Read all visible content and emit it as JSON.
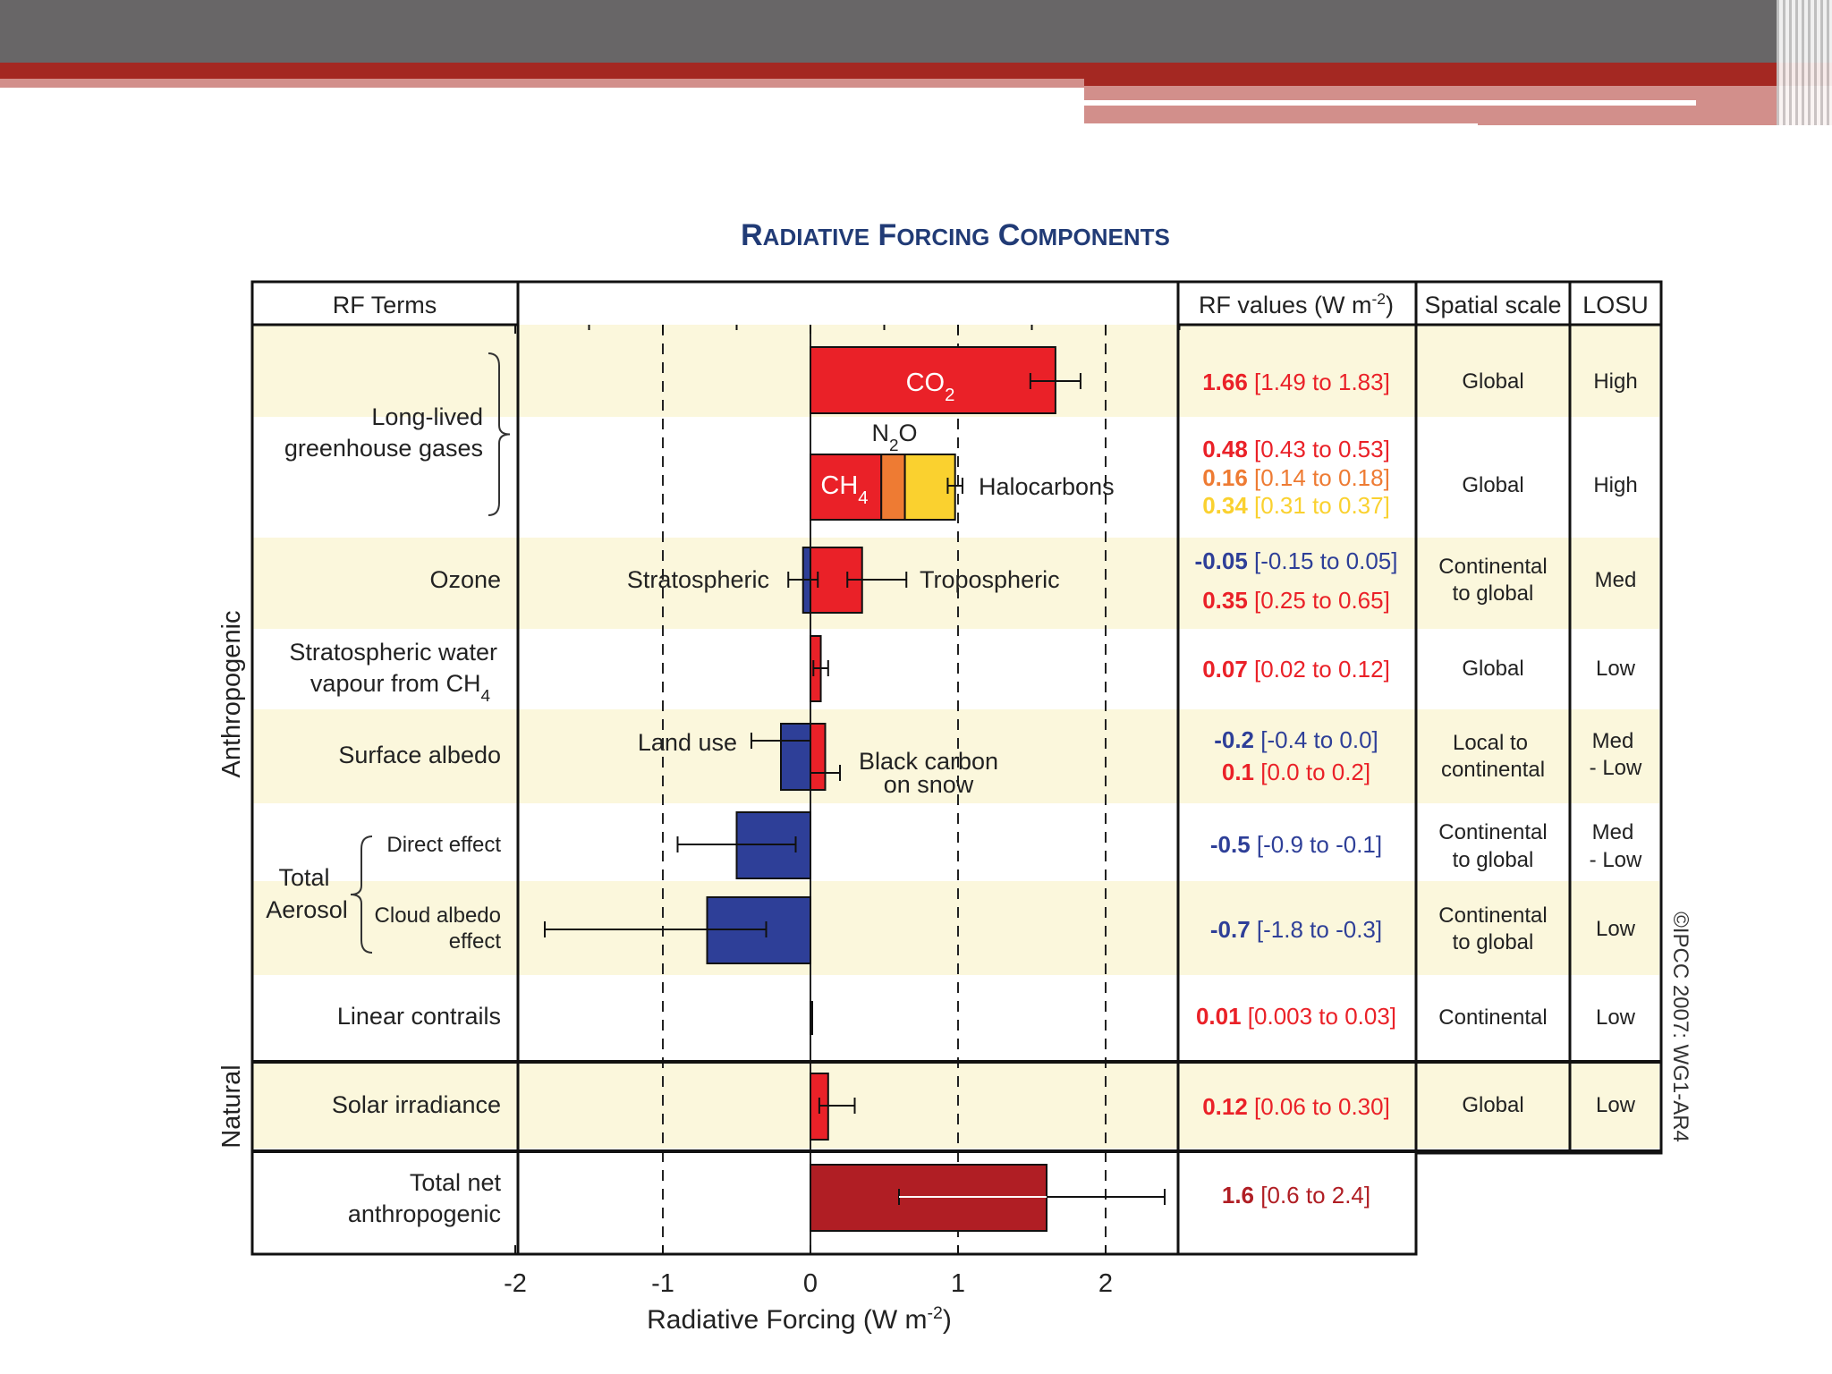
{
  "chart_data": {
    "type": "bar",
    "orientation": "horizontal",
    "title": "Radiative Forcing Components",
    "xlabel": "Radiative Forcing  (W m",
    "xlabel_sup": "-2",
    "xlabel_close": ")",
    "xlim": [
      -2,
      2.5
    ],
    "x_ticks": [
      -2,
      -1,
      0,
      1,
      2
    ],
    "dashed_gridlines_at": [
      -1,
      1,
      2
    ],
    "table_headers": {
      "rf_terms": "RF Terms",
      "rf_values": "RF values (W m",
      "rf_values_sup": "-2",
      "rf_values_close": ")",
      "spatial_scale": "Spatial scale",
      "losu": "LOSU"
    },
    "group_labels": {
      "anthropogenic": "Anthropogenic",
      "natural": "Natural"
    },
    "colors": {
      "positive": "#ea2128",
      "negative": "#2e3f98",
      "n2o": "#ee7b33",
      "halocarbons": "#fad12f",
      "total": "#b01e24",
      "band": "#fbf7dc",
      "title": "#213b76"
    },
    "rows": [
      {
        "term": [
          "Long-lived",
          "greenhouse gases"
        ],
        "components": [
          {
            "name": "CO",
            "sub": "2",
            "value": 1.66,
            "range": [
              1.49,
              1.83
            ]
          },
          {
            "name": "N",
            "sub": "2",
            "suffix": "O",
            "value": 0.16,
            "range": [
              0.14,
              0.18
            ]
          },
          {
            "name": "CH",
            "sub": "4",
            "value": 0.48,
            "range": [
              0.43,
              0.53
            ]
          },
          {
            "name": "Halocarbons",
            "value": 0.34,
            "range": [
              0.31,
              0.37
            ]
          }
        ],
        "values_text": [
          {
            "v": "1.66",
            "r": "[1.49 to 1.83]",
            "color": "#ea2128"
          },
          {
            "v": "0.48",
            "r": "[0.43 to 0.53]",
            "color": "#ea2128"
          },
          {
            "v": "0.16",
            "r": "[0.14 to 0.18]",
            "color": "#ee7b33"
          },
          {
            "v": "0.34",
            "r": "[0.31 to 0.37]",
            "color": "#fad12f"
          }
        ],
        "spatial_scale": [
          "Global",
          "Global"
        ],
        "losu": [
          "High",
          "High"
        ]
      },
      {
        "term": [
          "Ozone"
        ],
        "components": [
          {
            "name": "Stratospheric",
            "value": -0.05,
            "range": [
              -0.15,
              0.05
            ]
          },
          {
            "name": "Tropospheric",
            "value": 0.35,
            "range": [
              0.25,
              0.65
            ]
          }
        ],
        "values_text": [
          {
            "v": "-0.05",
            "r": "[-0.15 to 0.05]",
            "color": "#2e3f98"
          },
          {
            "v": "0.35",
            "r": "[0.25 to 0.65]",
            "color": "#ea2128"
          }
        ],
        "spatial_scale": [
          "Continental",
          "to global"
        ],
        "losu": [
          "Med"
        ]
      },
      {
        "term": [
          "Stratospheric water",
          "vapour from CH"
        ],
        "term_sub": "4",
        "components": [
          {
            "value": 0.07,
            "range": [
              0.02,
              0.12
            ]
          }
        ],
        "values_text": [
          {
            "v": "0.07",
            "r": "[0.02 to 0.12]",
            "color": "#ea2128"
          }
        ],
        "spatial_scale": [
          "Global"
        ],
        "losu": [
          "Low"
        ]
      },
      {
        "term": [
          "Surface albedo"
        ],
        "components": [
          {
            "name": "Land use",
            "value": -0.2,
            "range": [
              -0.4,
              0.0
            ]
          },
          {
            "name": [
              "Black carbon",
              "on snow"
            ],
            "value": 0.1,
            "range": [
              0.0,
              0.2
            ]
          }
        ],
        "values_text": [
          {
            "v": "-0.2",
            "r": "[-0.4 to 0.0]",
            "color": "#2e3f98"
          },
          {
            "v": "0.1",
            "r": "[0.0 to 0.2]",
            "color": "#ea2128"
          }
        ],
        "spatial_scale": [
          "Local to",
          "continental"
        ],
        "losu": [
          "Med",
          "- Low"
        ]
      },
      {
        "term": [
          "Total",
          "Aerosol"
        ],
        "sub_terms": [
          [
            "Direct effect"
          ],
          [
            "Cloud albedo",
            "effect"
          ]
        ],
        "components": [
          {
            "name": "Direct effect",
            "value": -0.5,
            "range": [
              -0.9,
              -0.1
            ]
          },
          {
            "name": "Cloud albedo effect",
            "value": -0.7,
            "range": [
              -1.8,
              -0.3
            ]
          }
        ],
        "values_text": [
          {
            "v": "-0.5",
            "r": "[-0.9 to -0.1]",
            "color": "#2e3f98"
          },
          {
            "v": "-0.7",
            "r": "[-1.8 to -0.3]",
            "color": "#2e3f98"
          }
        ],
        "spatial_scale": [
          "Continental",
          "to global",
          "Continental",
          "to global"
        ],
        "losu": [
          "Med",
          "- Low",
          "Low"
        ]
      },
      {
        "term": [
          "Linear contrails"
        ],
        "components": [
          {
            "value": 0.01,
            "range": [
              0.003,
              0.03
            ]
          }
        ],
        "values_text": [
          {
            "v": "0.01",
            "r": "[0.003 to 0.03]",
            "color": "#ea2128"
          }
        ],
        "spatial_scale": [
          "Continental"
        ],
        "losu": [
          "Low"
        ]
      },
      {
        "term": [
          "Solar irradiance"
        ],
        "components": [
          {
            "value": 0.12,
            "range": [
              0.06,
              0.3
            ]
          }
        ],
        "values_text": [
          {
            "v": "0.12",
            "r": "[0.06 to 0.30]",
            "color": "#ea2128"
          }
        ],
        "spatial_scale": [
          "Global"
        ],
        "losu": [
          "Low"
        ]
      },
      {
        "term": [
          "Total net",
          "anthropogenic"
        ],
        "components": [
          {
            "value": 1.6,
            "range": [
              0.6,
              2.4
            ]
          }
        ],
        "values_text": [
          {
            "v": "1.6",
            "r": "[0.6 to 2.4]",
            "color": "#b01e24"
          }
        ]
      }
    ],
    "copyright": "©IPCC 2007: WG1-AR4"
  }
}
